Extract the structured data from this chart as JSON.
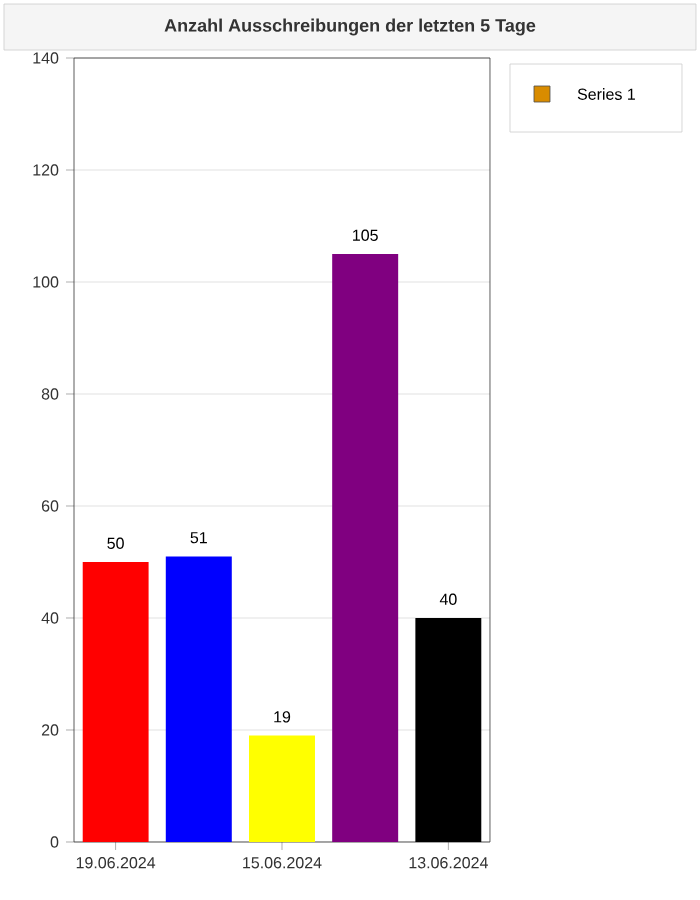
{
  "chart_data": {
    "type": "bar",
    "title": "Anzahl Ausschreibungen der letzten 5 Tage",
    "categories": [
      "19.06.2024",
      null,
      "15.06.2024",
      null,
      "13.06.2024"
    ],
    "series": [
      {
        "name": "Series 1",
        "color": "#d98c00",
        "colors": [
          "#ff0000",
          "#0000ff",
          "#ffff00",
          "#800080",
          "#000000"
        ],
        "values": [
          50,
          51,
          19,
          105,
          40
        ]
      }
    ],
    "ylim": [
      0,
      140
    ],
    "yticks": [
      0,
      20,
      40,
      60,
      80,
      100,
      120,
      140
    ],
    "grid": "y",
    "legend": "top right",
    "data_labels": true
  }
}
